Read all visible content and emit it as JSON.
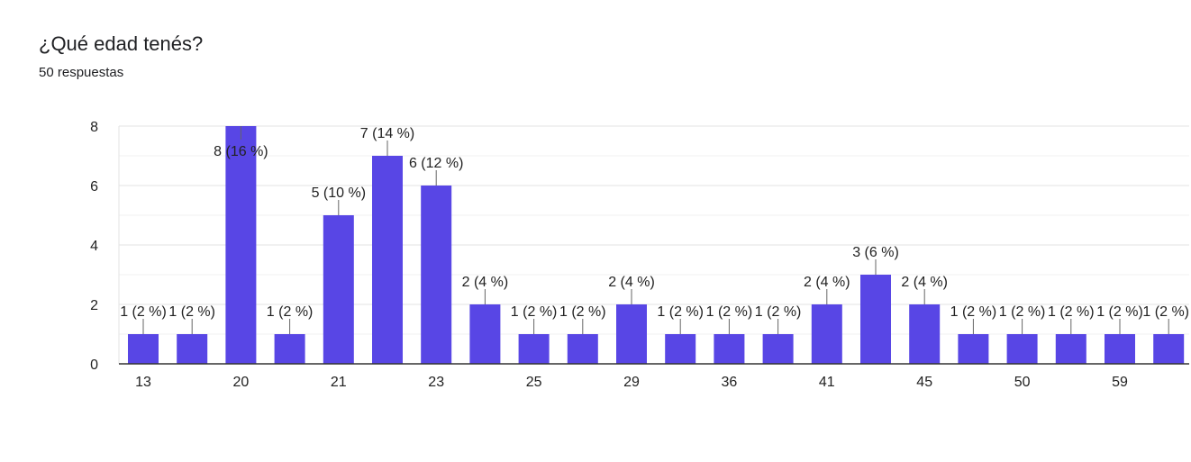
{
  "header": {
    "question_title": "¿Qué edad tenés?",
    "response_count": "50 respuestas"
  },
  "colors": {
    "bar": "#5846e5",
    "grid": "#ececec",
    "axis": "#333333",
    "text": "#222222"
  },
  "chart_data": {
    "type": "bar",
    "title": "¿Qué edad tenés?",
    "subtitle": "50 respuestas",
    "categories": [
      "13",
      "",
      "20",
      "",
      "21",
      "",
      "23",
      "",
      "25",
      "",
      "29",
      "",
      "36",
      "",
      "41",
      "",
      "45",
      "",
      "50",
      "",
      "59",
      ""
    ],
    "values": [
      1,
      1,
      8,
      1,
      5,
      7,
      6,
      2,
      1,
      1,
      2,
      1,
      1,
      1,
      2,
      3,
      2,
      1,
      1,
      1,
      1,
      1
    ],
    "data_labels": [
      "1 (2 %)",
      "1 (2 %)",
      "8 (16 %)",
      "1 (2 %)",
      "5 (10 %)",
      "7 (14 %)",
      "6 (12 %)",
      "2 (4 %)",
      "1 (2 %)",
      "1 (2 %)",
      "2 (4 %)",
      "1 (2 %)",
      "1 (2 %)",
      "1 (2 %)",
      "2 (4 %)",
      "3 (6 %)",
      "2 (4 %)",
      "1 (2 %)",
      "1 (2 %)",
      "1 (2 %)",
      "1 (2 %)",
      "1 (2 %)"
    ],
    "x_tick_labels": [
      {
        "index": 0,
        "label": "13"
      },
      {
        "index": 2,
        "label": "20"
      },
      {
        "index": 4,
        "label": "21"
      },
      {
        "index": 6,
        "label": "23"
      },
      {
        "index": 8,
        "label": "25"
      },
      {
        "index": 10,
        "label": "29"
      },
      {
        "index": 12,
        "label": "36"
      },
      {
        "index": 14,
        "label": "41"
      },
      {
        "index": 16,
        "label": "45"
      },
      {
        "index": 18,
        "label": "50"
      },
      {
        "index": 20,
        "label": "59"
      }
    ],
    "y_ticks": [
      0,
      2,
      4,
      6,
      8
    ],
    "ylim": [
      0,
      8
    ],
    "xlabel": "",
    "ylabel": "",
    "grid": true,
    "legend": "none"
  }
}
